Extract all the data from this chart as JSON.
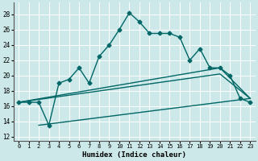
{
  "title": "",
  "xlabel": "Humidex (Indice chaleur)",
  "ylabel": "",
  "bg_color": "#cce8e8",
  "grid_color": "#ffffff",
  "line_color": "#006666",
  "xlim": [
    -0.5,
    23.5
  ],
  "ylim": [
    11.5,
    29.5
  ],
  "xticks": [
    0,
    1,
    2,
    3,
    4,
    5,
    6,
    7,
    8,
    9,
    10,
    11,
    12,
    13,
    14,
    15,
    16,
    17,
    18,
    19,
    20,
    21,
    22,
    23
  ],
  "yticks": [
    12,
    14,
    16,
    18,
    20,
    22,
    24,
    26,
    28
  ],
  "curve1_x": [
    0,
    1,
    2,
    3,
    4,
    5,
    6,
    7,
    8,
    9,
    10,
    11,
    12,
    13,
    14,
    15,
    16,
    17,
    18,
    19,
    20,
    21,
    22,
    23
  ],
  "curve1_y": [
    16.5,
    16.5,
    16.5,
    13.5,
    19.0,
    19.5,
    21.0,
    19.0,
    22.5,
    24.0,
    26.0,
    28.2,
    27.0,
    25.5,
    25.5,
    25.5,
    25.0,
    22.0,
    23.5,
    21.0,
    21.0,
    20.0,
    17.0,
    16.5
  ],
  "curve2_x": [
    0,
    20,
    23
  ],
  "curve2_y": [
    16.5,
    21.0,
    17.0
  ],
  "curve3_x": [
    0,
    20,
    23
  ],
  "curve3_y": [
    16.5,
    20.2,
    17.0
  ],
  "curve4_x": [
    2,
    23
  ],
  "curve4_y": [
    13.5,
    17.0
  ],
  "marker": "D",
  "markersize": 2.5,
  "linewidth": 1.0
}
